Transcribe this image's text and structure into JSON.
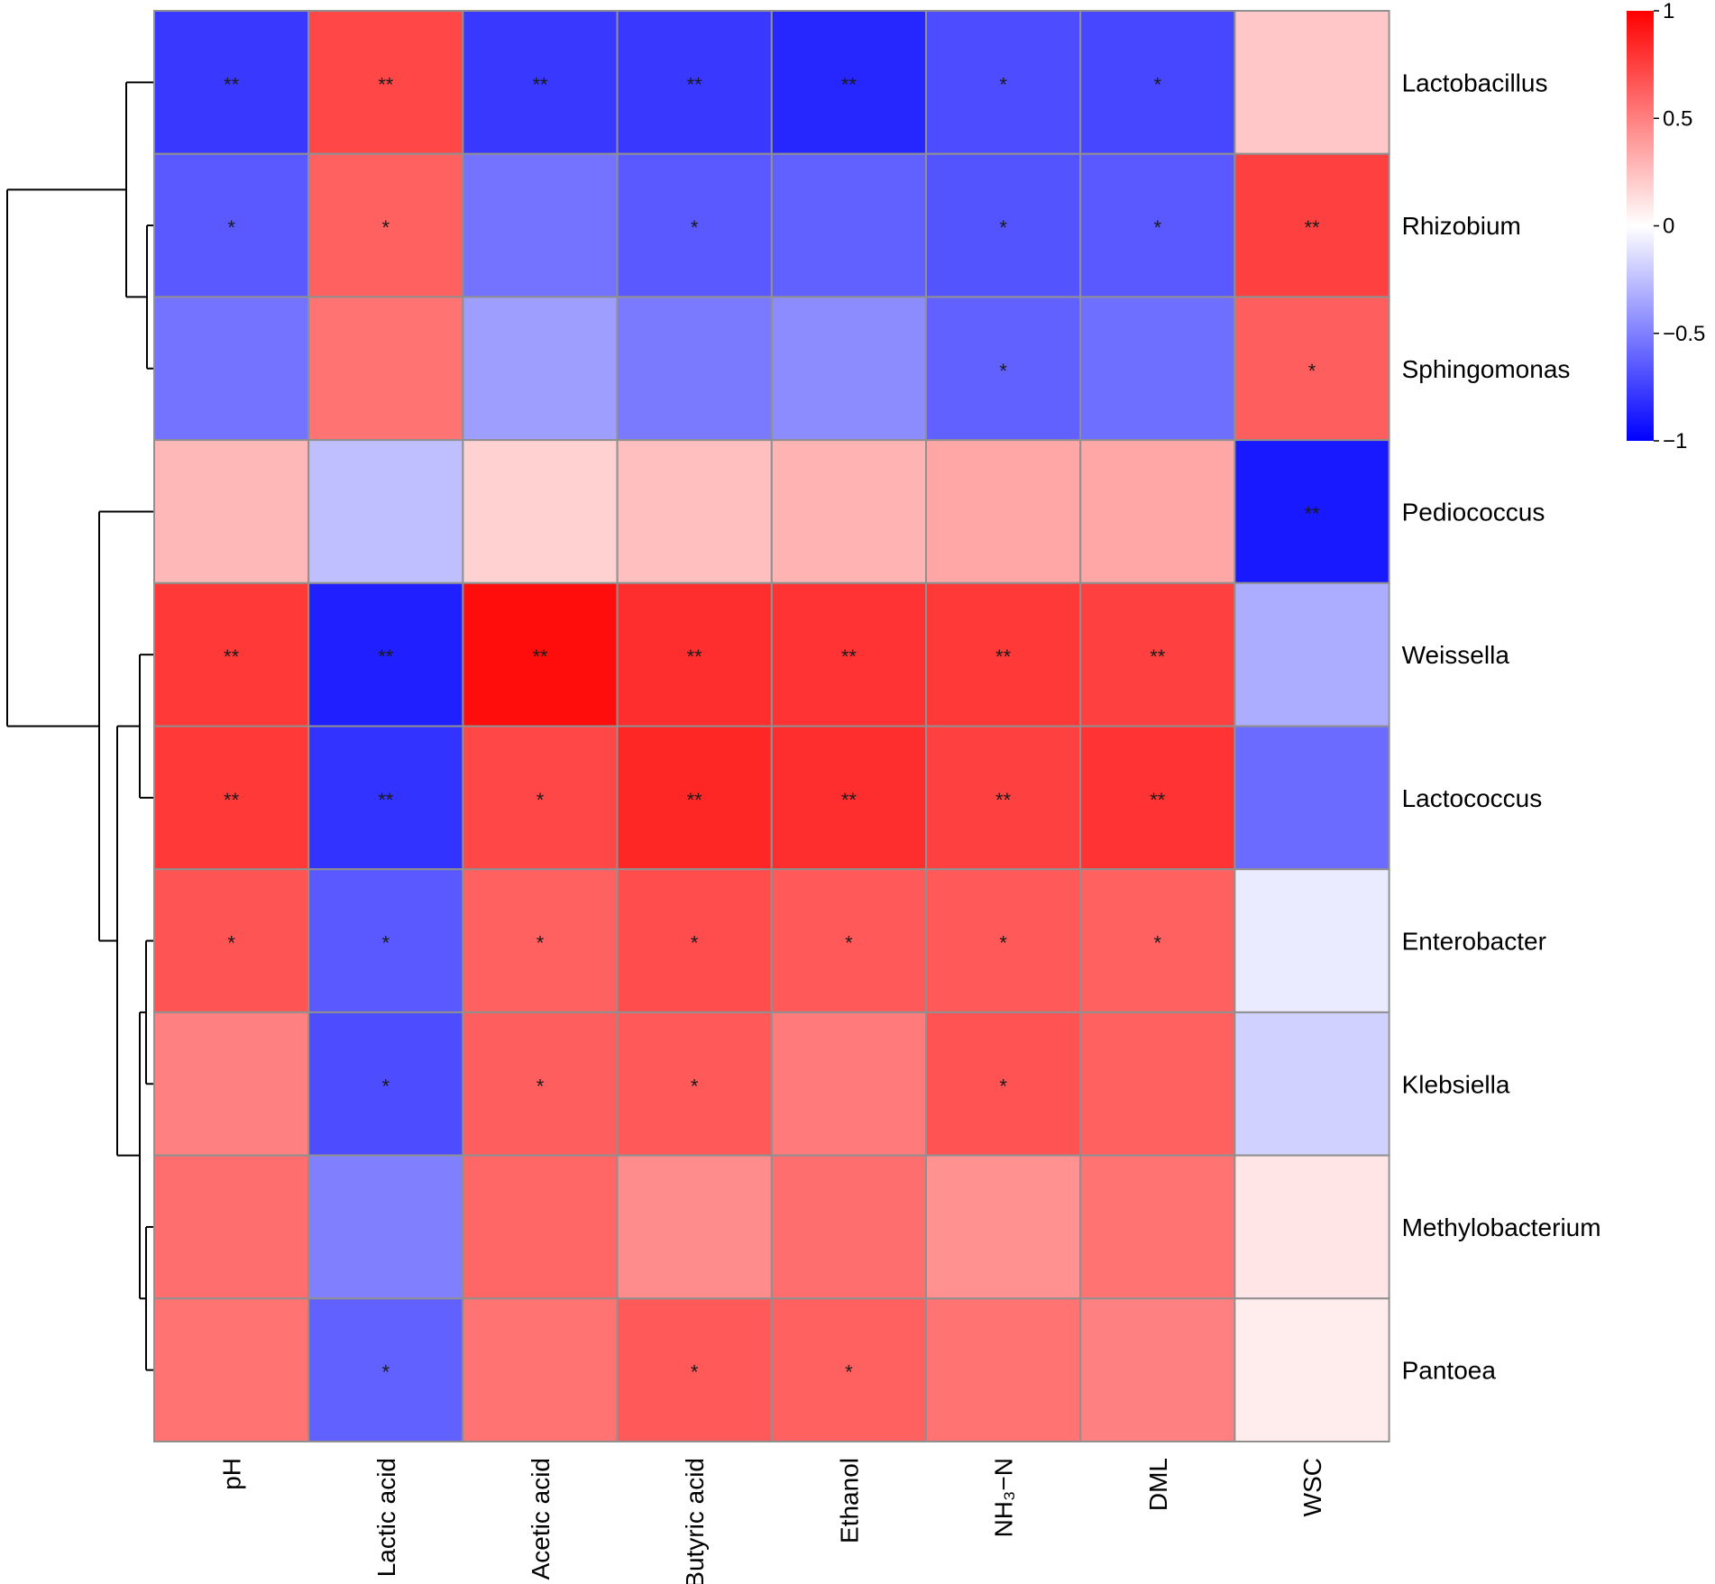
{
  "chart_data": {
    "type": "heatmap",
    "title": "",
    "rows": [
      "Lactobacillus",
      "Rhizobium",
      "Sphingomonas",
      "Pediococcus",
      "Weissella",
      "Lactococcus",
      "Enterobacter",
      "Klebsiella",
      "Methylobacterium",
      "Pantoea"
    ],
    "columns": [
      "pH",
      "Lactic acid",
      "Acetic acid",
      "Butyric acid",
      "Ethanol",
      "NH₃−N",
      "DML",
      "WSC"
    ],
    "values": [
      [
        -0.78,
        0.72,
        -0.78,
        -0.78,
        -0.85,
        -0.7,
        -0.72,
        0.22
      ],
      [
        -0.65,
        0.62,
        -0.55,
        -0.65,
        -0.62,
        -0.67,
        -0.65,
        0.75
      ],
      [
        -0.55,
        0.55,
        -0.38,
        -0.52,
        -0.45,
        -0.62,
        -0.57,
        0.63
      ],
      [
        0.28,
        -0.25,
        0.18,
        0.25,
        0.3,
        0.35,
        0.35,
        -0.9
      ],
      [
        0.78,
        -0.88,
        0.95,
        0.82,
        0.8,
        0.78,
        0.75,
        -0.32
      ],
      [
        0.78,
        -0.8,
        0.72,
        0.85,
        0.82,
        0.75,
        0.8,
        -0.58
      ],
      [
        0.67,
        -0.65,
        0.62,
        0.7,
        0.65,
        0.65,
        0.62,
        -0.08
      ],
      [
        0.5,
        -0.7,
        0.63,
        0.65,
        0.52,
        0.68,
        0.62,
        -0.18
      ],
      [
        0.57,
        -0.5,
        0.6,
        0.45,
        0.57,
        0.43,
        0.55,
        0.1
      ],
      [
        0.55,
        -0.62,
        0.55,
        0.65,
        0.62,
        0.55,
        0.5,
        0.07
      ]
    ],
    "significance": [
      [
        "**",
        "**",
        "**",
        "**",
        "**",
        "*",
        "*",
        ""
      ],
      [
        "*",
        "*",
        "",
        "*",
        "",
        "*",
        "*",
        "**"
      ],
      [
        "",
        "",
        "",
        "",
        "",
        "*",
        "",
        "*"
      ],
      [
        "",
        "",
        "",
        "",
        "",
        "",
        "",
        "**"
      ],
      [
        "**",
        "**",
        "**",
        "**",
        "**",
        "**",
        "**",
        ""
      ],
      [
        "**",
        "**",
        "*",
        "**",
        "**",
        "**",
        "**",
        ""
      ],
      [
        "*",
        "*",
        "*",
        "*",
        "*",
        "*",
        "*",
        ""
      ],
      [
        "",
        "*",
        "*",
        "*",
        "",
        "*",
        "",
        ""
      ],
      [
        "",
        "",
        "",
        "",
        "",
        "",
        "",
        ""
      ],
      [
        "",
        "*",
        "",
        "*",
        "*",
        "",
        "",
        ""
      ]
    ],
    "color_scale": {
      "min": -1,
      "max": 1,
      "low_color": "#0000ff",
      "mid_color": "#ffffff",
      "high_color": "#ff0000",
      "ticks": [
        1,
        0.5,
        0,
        -0.5,
        -1
      ],
      "tick_labels": [
        "1",
        "0.5",
        "0",
        "−0.5",
        "−1"
      ]
    },
    "legend_position": "top-right",
    "row_dendrogram": true
  }
}
